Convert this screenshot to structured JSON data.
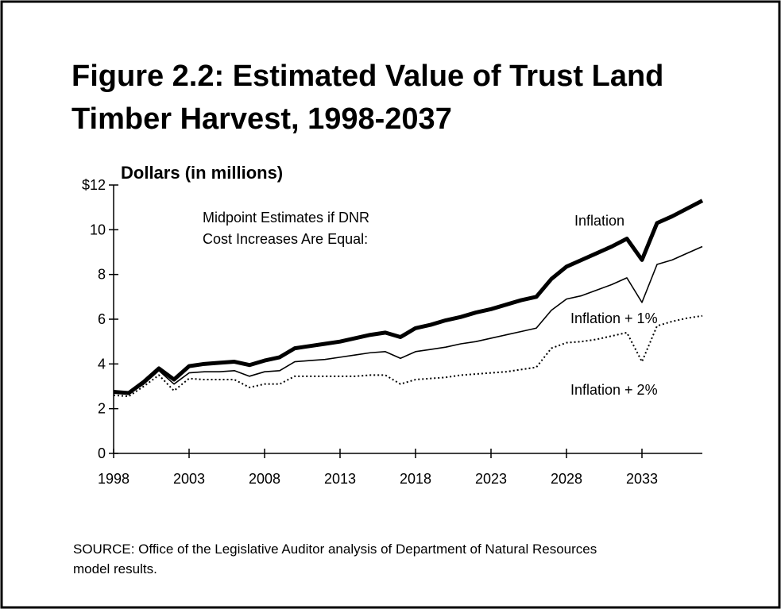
{
  "chart_data": {
    "type": "line",
    "title": "Figure 2.2:  Estimated Value of Trust Land",
    "subtitle": "Timber Harvest, 1998-2037",
    "y_label": "Dollars (in millions)",
    "annotation": [
      "Midpoint Estimates if DNR",
      "Cost Increases Are Equal:"
    ],
    "source": [
      "SOURCE: Office of the Legislative Auditor analysis of Department of Natural Resources",
      "model results."
    ],
    "x": [
      1998,
      1999,
      2000,
      2001,
      2002,
      2003,
      2004,
      2005,
      2006,
      2007,
      2008,
      2009,
      2010,
      2011,
      2012,
      2013,
      2014,
      2015,
      2016,
      2017,
      2018,
      2019,
      2020,
      2021,
      2022,
      2023,
      2024,
      2025,
      2026,
      2027,
      2028,
      2029,
      2030,
      2031,
      2032,
      2033,
      2034,
      2035,
      2036,
      2037
    ],
    "series": [
      {
        "name": "Inflation",
        "color": "#000000",
        "style": "thick",
        "values": [
          2.75,
          2.7,
          3.2,
          3.8,
          3.3,
          3.9,
          4.0,
          4.05,
          4.1,
          3.95,
          4.15,
          4.3,
          4.7,
          4.8,
          4.9,
          5.0,
          5.15,
          5.3,
          5.4,
          5.2,
          5.6,
          5.75,
          5.95,
          6.1,
          6.3,
          6.45,
          6.65,
          6.85,
          7.0,
          7.8,
          8.35,
          8.65,
          8.95,
          9.25,
          9.6,
          8.65,
          10.3,
          10.6,
          10.95,
          11.3
        ]
      },
      {
        "name": "Inflation + 1%",
        "color": "#000000",
        "style": "thin",
        "values": [
          2.7,
          2.65,
          3.1,
          3.7,
          3.1,
          3.6,
          3.65,
          3.65,
          3.7,
          3.45,
          3.65,
          3.7,
          4.1,
          4.15,
          4.2,
          4.3,
          4.4,
          4.5,
          4.55,
          4.25,
          4.55,
          4.65,
          4.75,
          4.9,
          5.0,
          5.15,
          5.3,
          5.45,
          5.6,
          6.4,
          6.9,
          7.05,
          7.3,
          7.55,
          7.85,
          6.75,
          8.45,
          8.65,
          8.95,
          9.25
        ]
      },
      {
        "name": "Inflation + 2%",
        "color": "#000000",
        "style": "dotted",
        "values": [
          2.6,
          2.55,
          3.0,
          3.5,
          2.8,
          3.35,
          3.3,
          3.3,
          3.3,
          2.95,
          3.1,
          3.1,
          3.45,
          3.45,
          3.45,
          3.45,
          3.45,
          3.5,
          3.5,
          3.1,
          3.3,
          3.35,
          3.4,
          3.5,
          3.55,
          3.6,
          3.65,
          3.75,
          3.85,
          4.7,
          4.95,
          5.0,
          5.1,
          5.25,
          5.4,
          4.1,
          5.7,
          5.9,
          6.05,
          6.15
        ]
      }
    ],
    "xlim": [
      1998,
      2037
    ],
    "xticks": [
      1998,
      2003,
      2008,
      2013,
      2018,
      2023,
      2028,
      2033
    ],
    "ylim": [
      0,
      12
    ],
    "yticks": [
      0,
      2,
      4,
      6,
      8,
      10,
      {
        "value": 12,
        "label": "$12"
      }
    ]
  }
}
